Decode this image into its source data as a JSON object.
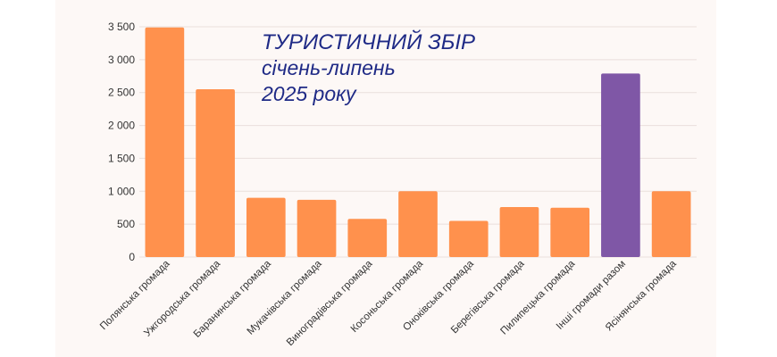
{
  "chart_data": {
    "type": "bar",
    "title_lines": [
      "ТУРИСТИЧНИЙ ЗБІР",
      "січень-липень",
      "2025 року"
    ],
    "categories": [
      "Полянська громада",
      "Ужгородська громада",
      "Баранинська громада",
      "Мукачівська громада",
      "Виноградівська громада",
      "Косоньська громада",
      "Оноківська громада",
      "Берегівська громада",
      "Пилипецька громада",
      "Інші громади разом",
      "Ясінянська громада"
    ],
    "values": [
      3490,
      2550,
      900,
      870,
      580,
      1000,
      550,
      760,
      750,
      2790,
      1000
    ],
    "ylim": [
      0,
      3500
    ],
    "yticks": [
      0,
      500,
      1000,
      1500,
      2000,
      2500,
      3000,
      3500
    ],
    "ytick_labels": [
      "0",
      "500",
      "1 000",
      "1 500",
      "2 000",
      "2 500",
      "3 000",
      "3 500"
    ],
    "highlight_index": 9,
    "colors": {
      "bar": "#ff914d",
      "highlight": "#7f57a6",
      "panel": "#fdf8f6",
      "grid": "#eadfdc",
      "title": "#1f2a86"
    },
    "grid": true,
    "legend": "none"
  }
}
